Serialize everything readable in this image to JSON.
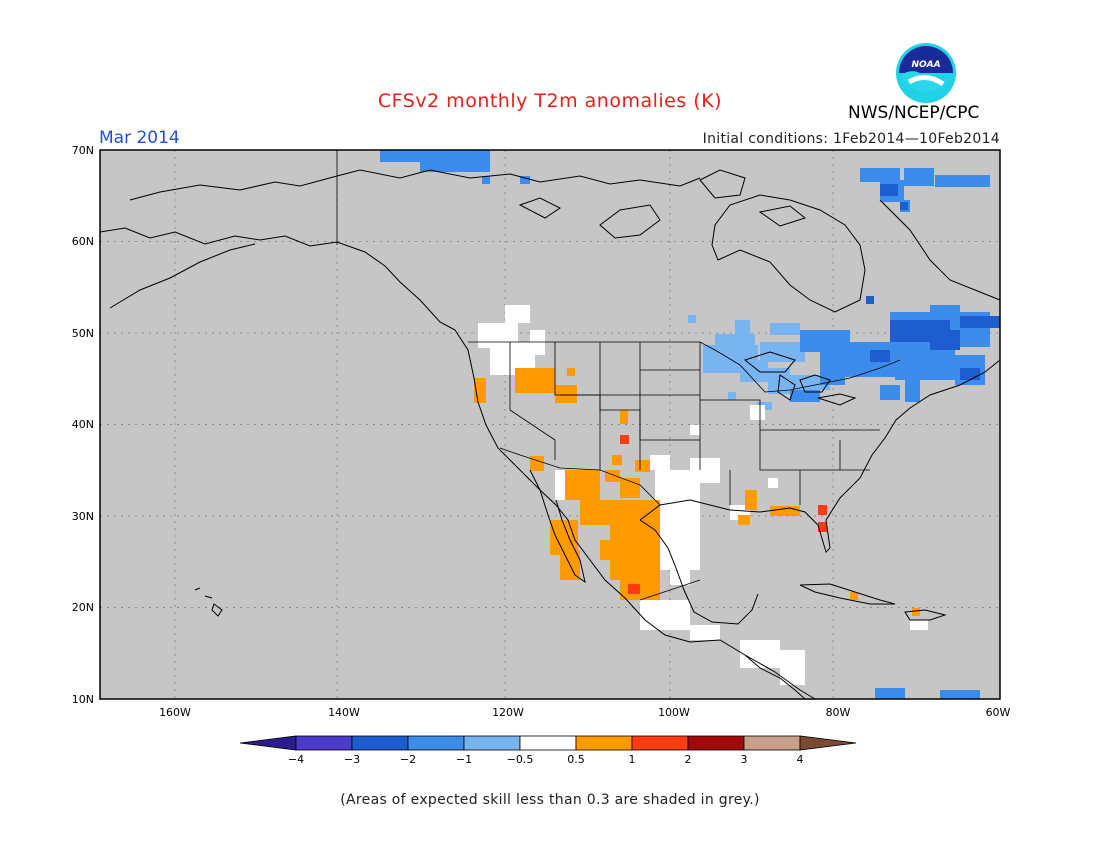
{
  "title": "CFSv2 monthly T2m anomalies (K)",
  "valid_month": "Mar 2014",
  "initial_conditions": "Initial conditions: 1Feb2014—10Feb2014",
  "agency": "NWS/NCEP/CPC",
  "logo_text": "NOAA",
  "footnote": "(Areas of expected skill less than 0.3 are shaded in grey.)",
  "lat_labels": [
    "70N",
    "60N",
    "50N",
    "40N",
    "30N",
    "20N",
    "10N"
  ],
  "lon_labels": [
    "160W",
    "140W",
    "120W",
    "100W",
    "80W",
    "60W"
  ],
  "colorbar": {
    "labels": [
      "−4",
      "−3",
      "−2",
      "−1",
      "−0.5",
      "0.5",
      "1",
      "2",
      "3",
      "4"
    ],
    "colors": [
      "#2a1c8c",
      "#4a3bc8",
      "#1e5dd0",
      "#3c8cec",
      "#78b4f0",
      "#ffffff",
      "#ff9a00",
      "#ff3c10",
      "#a00a0a",
      "#c8a08c",
      "#7c4a30"
    ]
  },
  "colors": {
    "land_grey": "#c6c6c6",
    "title_red": "#e8201a",
    "month_blue": "#1f4fe0"
  }
}
